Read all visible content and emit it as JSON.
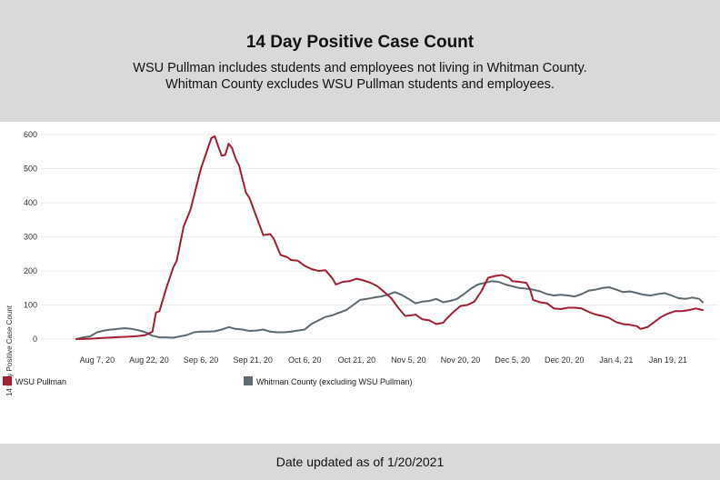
{
  "header": {
    "title": "14 Day Positive Case Count",
    "subtitle_line1": "WSU Pullman includes students and employees not living in Whitman County.",
    "subtitle_line2": "Whitman County excludes WSU Pullman students and employees."
  },
  "footer": {
    "text": "Date updated as of 1/20/2021"
  },
  "colors": {
    "pullman": "#a31f34",
    "whitman": "#5e6a71",
    "grid": "#ececec"
  },
  "chart_data": {
    "type": "line",
    "title": "",
    "xlabel": "",
    "ylabel": "14 Day Positive Case Count",
    "ylim": [
      0,
      600
    ],
    "y_ticks": [
      0,
      100,
      200,
      300,
      400,
      500,
      600
    ],
    "x_tick_labels": [
      "Aug 7, 20",
      "Aug 22, 20",
      "Sep 6, 20",
      "Sep 21, 20",
      "Oct 6, 20",
      "Oct 21, 20",
      "Nov 5, 20",
      "Nov 20, 20",
      "Dec 5, 20",
      "Dec 20, 20",
      "Jan 4, 21",
      "Jan 19, 21"
    ],
    "x_ticks": [
      "2020-08-07",
      "2020-08-22",
      "2020-09-06",
      "2020-09-21",
      "2020-10-06",
      "2020-10-21",
      "2020-11-05",
      "2020-11-20",
      "2020-12-05",
      "2020-12-20",
      "2021-01-04",
      "2021-01-19"
    ],
    "xlim": [
      "2020-08-01",
      "2021-01-21"
    ],
    "grid": "horizontal",
    "legend_placement": "bottom",
    "series": [
      {
        "name": "WSU Pullman",
        "color": "#a31f34",
        "points": [
          [
            "2020-08-01",
            0
          ],
          [
            "2020-08-05",
            1
          ],
          [
            "2020-08-08",
            3
          ],
          [
            "2020-08-12",
            5
          ],
          [
            "2020-08-16",
            7
          ],
          [
            "2020-08-19",
            9
          ],
          [
            "2020-08-21",
            12
          ],
          [
            "2020-08-23",
            22
          ],
          [
            "2020-08-24",
            78
          ],
          [
            "2020-08-25",
            82
          ],
          [
            "2020-08-27",
            150
          ],
          [
            "2020-08-29",
            210
          ],
          [
            "2020-08-30",
            230
          ],
          [
            "2020-09-01",
            330
          ],
          [
            "2020-09-03",
            380
          ],
          [
            "2020-09-05",
            460
          ],
          [
            "2020-09-06",
            500
          ],
          [
            "2020-09-08",
            560
          ],
          [
            "2020-09-09",
            590
          ],
          [
            "2020-09-10",
            595
          ],
          [
            "2020-09-11",
            565
          ],
          [
            "2020-09-12",
            538
          ],
          [
            "2020-09-13",
            540
          ],
          [
            "2020-09-14",
            573
          ],
          [
            "2020-09-15",
            560
          ],
          [
            "2020-09-16",
            530
          ],
          [
            "2020-09-17",
            510
          ],
          [
            "2020-09-18",
            470
          ],
          [
            "2020-09-19",
            430
          ],
          [
            "2020-09-20",
            415
          ],
          [
            "2020-09-22",
            360
          ],
          [
            "2020-09-24",
            305
          ],
          [
            "2020-09-26",
            308
          ],
          [
            "2020-09-27",
            295
          ],
          [
            "2020-09-29",
            247
          ],
          [
            "2020-10-01",
            240
          ],
          [
            "2020-10-02",
            232
          ],
          [
            "2020-10-04",
            230
          ],
          [
            "2020-10-06",
            215
          ],
          [
            "2020-10-08",
            205
          ],
          [
            "2020-10-10",
            200
          ],
          [
            "2020-10-12",
            202
          ],
          [
            "2020-10-14",
            178
          ],
          [
            "2020-10-15",
            160
          ],
          [
            "2020-10-17",
            168
          ],
          [
            "2020-10-19",
            170
          ],
          [
            "2020-10-21",
            177
          ],
          [
            "2020-10-23",
            172
          ],
          [
            "2020-10-25",
            165
          ],
          [
            "2020-10-27",
            155
          ],
          [
            "2020-10-29",
            138
          ],
          [
            "2020-10-31",
            120
          ],
          [
            "2020-11-02",
            92
          ],
          [
            "2020-11-04",
            68
          ],
          [
            "2020-11-06",
            70
          ],
          [
            "2020-11-07",
            72
          ],
          [
            "2020-11-09",
            58
          ],
          [
            "2020-11-11",
            55
          ],
          [
            "2020-11-13",
            44
          ],
          [
            "2020-11-15",
            48
          ],
          [
            "2020-11-16",
            60
          ],
          [
            "2020-11-18",
            80
          ],
          [
            "2020-11-20",
            97
          ],
          [
            "2020-11-22",
            100
          ],
          [
            "2020-11-24",
            110
          ],
          [
            "2020-11-26",
            140
          ],
          [
            "2020-11-28",
            180
          ],
          [
            "2020-11-30",
            185
          ],
          [
            "2020-12-02",
            188
          ],
          [
            "2020-12-04",
            180
          ],
          [
            "2020-12-05",
            170
          ],
          [
            "2020-12-07",
            168
          ],
          [
            "2020-12-09",
            165
          ],
          [
            "2020-12-10",
            148
          ],
          [
            "2020-12-11",
            115
          ],
          [
            "2020-12-13",
            108
          ],
          [
            "2020-12-15",
            105
          ],
          [
            "2020-12-17",
            90
          ],
          [
            "2020-12-19",
            88
          ],
          [
            "2020-12-21",
            92
          ],
          [
            "2020-12-23",
            92
          ],
          [
            "2020-12-25",
            90
          ],
          [
            "2020-12-27",
            80
          ],
          [
            "2020-12-29",
            72
          ],
          [
            "2020-12-31",
            68
          ],
          [
            "2021-01-02",
            62
          ],
          [
            "2021-01-04",
            50
          ],
          [
            "2021-01-06",
            44
          ],
          [
            "2021-01-08",
            42
          ],
          [
            "2021-01-10",
            38
          ],
          [
            "2021-01-11",
            30
          ],
          [
            "2021-01-13",
            35
          ],
          [
            "2021-01-15",
            50
          ],
          [
            "2021-01-17",
            65
          ],
          [
            "2021-01-19",
            75
          ],
          [
            "2021-01-21",
            82
          ],
          [
            "2021-01-23",
            82
          ],
          [
            "2021-01-25",
            85
          ],
          [
            "2021-01-27",
            90
          ],
          [
            "2021-01-29",
            85
          ]
        ]
      },
      {
        "name": "Whitman County (excluding WSU Pullman)",
        "color": "#5e6a71",
        "points": [
          [
            "2020-08-01",
            0
          ],
          [
            "2020-08-03",
            5
          ],
          [
            "2020-08-05",
            8
          ],
          [
            "2020-08-07",
            20
          ],
          [
            "2020-08-09",
            25
          ],
          [
            "2020-08-11",
            28
          ],
          [
            "2020-08-13",
            30
          ],
          [
            "2020-08-15",
            32
          ],
          [
            "2020-08-17",
            30
          ],
          [
            "2020-08-19",
            26
          ],
          [
            "2020-08-21",
            20
          ],
          [
            "2020-08-23",
            10
          ],
          [
            "2020-08-25",
            5
          ],
          [
            "2020-08-27",
            5
          ],
          [
            "2020-08-29",
            4
          ],
          [
            "2020-08-31",
            8
          ],
          [
            "2020-09-02",
            12
          ],
          [
            "2020-09-04",
            20
          ],
          [
            "2020-09-06",
            22
          ],
          [
            "2020-09-08",
            22
          ],
          [
            "2020-09-10",
            23
          ],
          [
            "2020-09-12",
            28
          ],
          [
            "2020-09-14",
            35
          ],
          [
            "2020-09-16",
            30
          ],
          [
            "2020-09-18",
            28
          ],
          [
            "2020-09-20",
            24
          ],
          [
            "2020-09-22",
            25
          ],
          [
            "2020-09-24",
            28
          ],
          [
            "2020-09-26",
            22
          ],
          [
            "2020-09-28",
            20
          ],
          [
            "2020-09-30",
            20
          ],
          [
            "2020-10-02",
            22
          ],
          [
            "2020-10-04",
            25
          ],
          [
            "2020-10-06",
            28
          ],
          [
            "2020-10-08",
            45
          ],
          [
            "2020-10-10",
            55
          ],
          [
            "2020-10-12",
            65
          ],
          [
            "2020-10-14",
            70
          ],
          [
            "2020-10-16",
            78
          ],
          [
            "2020-10-18",
            85
          ],
          [
            "2020-10-20",
            100
          ],
          [
            "2020-10-22",
            115
          ],
          [
            "2020-10-24",
            118
          ],
          [
            "2020-10-26",
            122
          ],
          [
            "2020-10-28",
            125
          ],
          [
            "2020-10-30",
            130
          ],
          [
            "2020-11-01",
            138
          ],
          [
            "2020-11-03",
            130
          ],
          [
            "2020-11-05",
            118
          ],
          [
            "2020-11-07",
            105
          ],
          [
            "2020-11-09",
            110
          ],
          [
            "2020-11-11",
            112
          ],
          [
            "2020-11-13",
            118
          ],
          [
            "2020-11-15",
            108
          ],
          [
            "2020-11-17",
            112
          ],
          [
            "2020-11-19",
            118
          ],
          [
            "2020-11-21",
            132
          ],
          [
            "2020-11-23",
            148
          ],
          [
            "2020-11-25",
            160
          ],
          [
            "2020-11-27",
            165
          ],
          [
            "2020-11-29",
            170
          ],
          [
            "2020-12-01",
            168
          ],
          [
            "2020-12-03",
            160
          ],
          [
            "2020-12-05",
            155
          ],
          [
            "2020-12-07",
            150
          ],
          [
            "2020-12-09",
            148
          ],
          [
            "2020-12-11",
            145
          ],
          [
            "2020-12-13",
            140
          ],
          [
            "2020-12-15",
            132
          ],
          [
            "2020-12-17",
            128
          ],
          [
            "2020-12-19",
            130
          ],
          [
            "2020-12-21",
            128
          ],
          [
            "2020-12-23",
            125
          ],
          [
            "2020-12-25",
            132
          ],
          [
            "2020-12-27",
            142
          ],
          [
            "2020-12-29",
            145
          ],
          [
            "2020-12-31",
            150
          ],
          [
            "2021-01-02",
            152
          ],
          [
            "2021-01-04",
            145
          ],
          [
            "2021-01-06",
            138
          ],
          [
            "2021-01-08",
            140
          ],
          [
            "2021-01-10",
            135
          ],
          [
            "2021-01-12",
            130
          ],
          [
            "2021-01-14",
            128
          ],
          [
            "2021-01-16",
            132
          ],
          [
            "2021-01-18",
            135
          ],
          [
            "2021-01-20",
            128
          ],
          [
            "2021-01-22",
            120
          ],
          [
            "2021-01-24",
            118
          ],
          [
            "2021-01-26",
            122
          ],
          [
            "2021-01-28",
            118
          ],
          [
            "2021-01-29",
            108
          ]
        ]
      }
    ]
  }
}
